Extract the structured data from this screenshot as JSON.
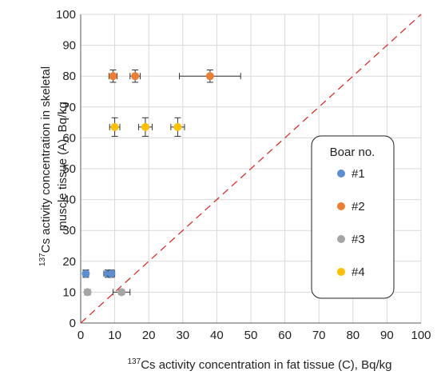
{
  "chart_data": {
    "type": "scatter",
    "xlabel_prefix": "137",
    "xlabel": "Cs activity concentration in fat tissue (C), Bq/kg",
    "ylabel_prefix": "137",
    "ylabel_line1": "Cs activity concentration in skeletal",
    "ylabel_line2": "muscle tissue (A), Bq/kg",
    "xlim": [
      0,
      100
    ],
    "ylim": [
      0,
      100
    ],
    "xticks": [
      "0",
      "10",
      "20",
      "30",
      "40",
      "50",
      "60",
      "70",
      "80",
      "90",
      "100"
    ],
    "yticks": [
      "0",
      "10",
      "20",
      "30",
      "40",
      "50",
      "60",
      "70",
      "80",
      "90",
      "100"
    ],
    "grid": true,
    "reference_line": {
      "style": "dashed",
      "color": "#d9302c",
      "from": [
        0,
        0
      ],
      "to": [
        100,
        100
      ]
    },
    "legend": {
      "title": "Boar no.",
      "placement": "right"
    },
    "series": [
      {
        "name": "#1",
        "color": "#5b8fd0",
        "points": [
          {
            "x": 1.5,
            "y": 16,
            "xerr": 0.8,
            "yerr": 1.2
          },
          {
            "x": 8.0,
            "y": 16,
            "xerr": 1.2,
            "yerr": 1.2
          },
          {
            "x": 9.0,
            "y": 16,
            "xerr": 1.0,
            "yerr": 1.2
          }
        ]
      },
      {
        "name": "#2",
        "color": "#ed7d31",
        "points": [
          {
            "x": 9.5,
            "y": 80,
            "xerr": 1.2,
            "yerr": 2
          },
          {
            "x": 16.0,
            "y": 80,
            "xerr": 1.5,
            "yerr": 2
          },
          {
            "x": 38.0,
            "y": 80,
            "xerr": 9,
            "yerr": 2
          }
        ]
      },
      {
        "name": "#3",
        "color": "#a5a5a5",
        "points": [
          {
            "x": 2.0,
            "y": 10,
            "xerr": 0.8,
            "yerr": 0.8
          },
          {
            "x": 12.0,
            "y": 10,
            "xerr": 2.5,
            "yerr": 0.8
          }
        ]
      },
      {
        "name": "#4",
        "color": "#ffc000",
        "points": [
          {
            "x": 10.0,
            "y": 63.5,
            "xerr": 1.5,
            "yerr": 3
          },
          {
            "x": 19.0,
            "y": 63.5,
            "xerr": 2,
            "yerr": 3
          },
          {
            "x": 28.5,
            "y": 63.5,
            "xerr": 2,
            "yerr": 3
          }
        ]
      }
    ]
  }
}
